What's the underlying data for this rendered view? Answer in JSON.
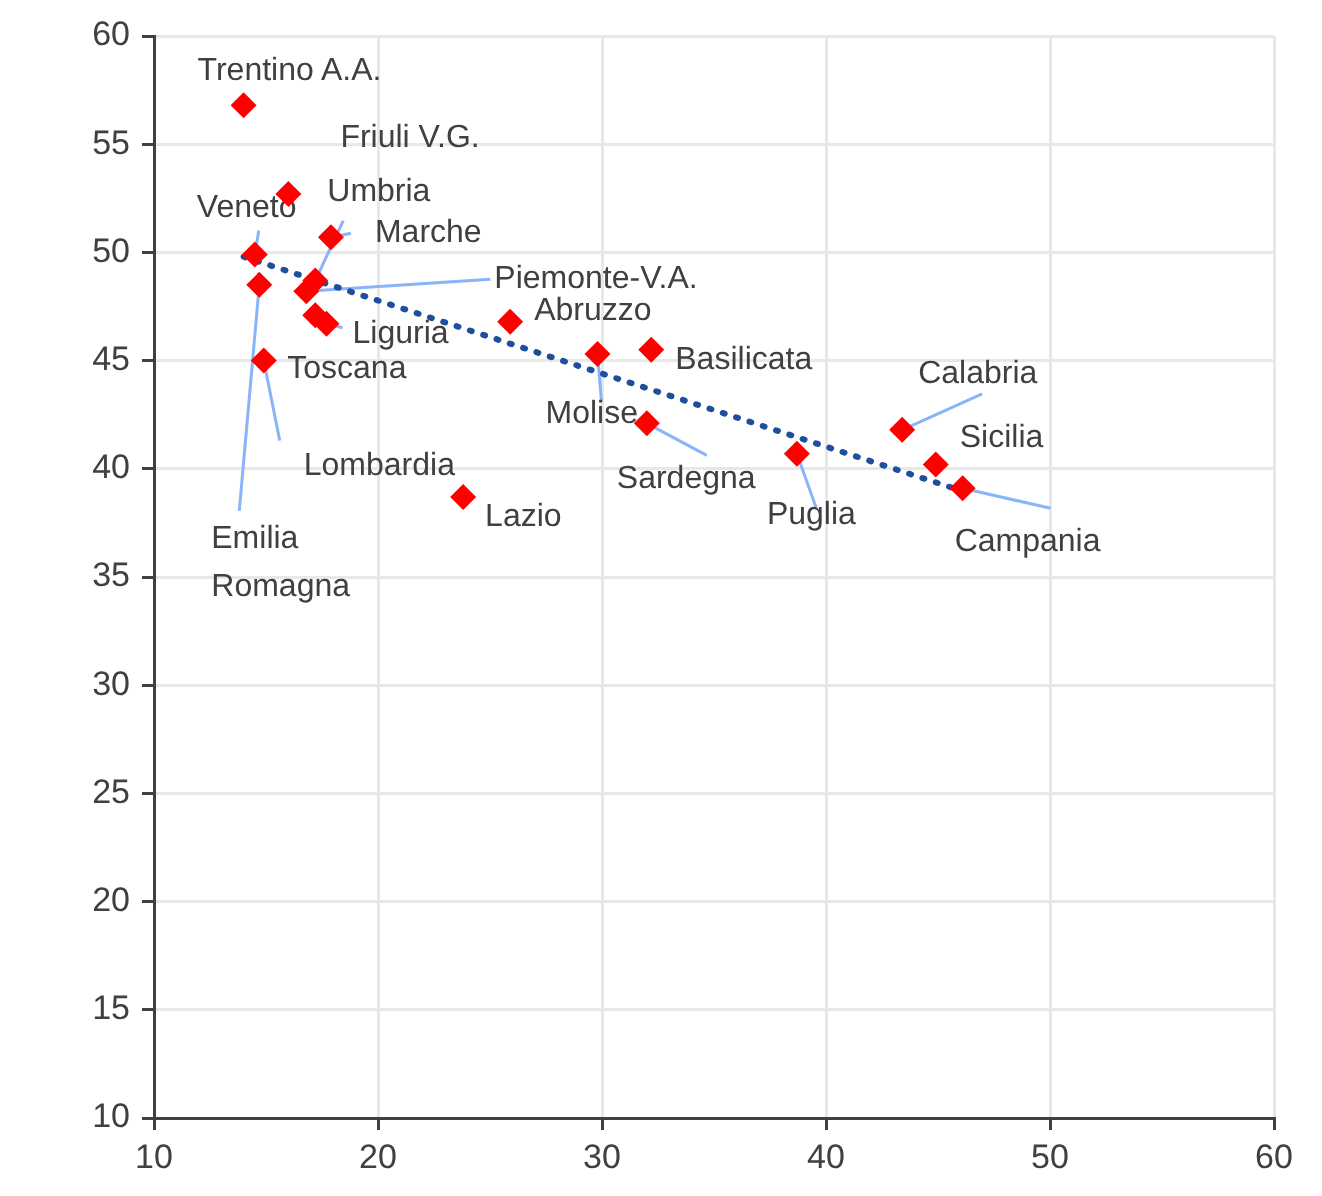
{
  "chart_data": {
    "type": "scatter",
    "xlim": [
      10,
      60
    ],
    "xticks": [
      10,
      20,
      30,
      40,
      50,
      60
    ],
    "ylim": [
      10,
      60
    ],
    "yticks": [
      10,
      15,
      20,
      25,
      30,
      35,
      40,
      45,
      50,
      55,
      60
    ],
    "grid": true,
    "legend": false,
    "marker": "diamond",
    "series": [
      {
        "color": "#ff0000",
        "x": [
          14.0,
          16.0,
          14.5,
          17.2,
          17.9,
          16.8,
          17.7,
          17.2,
          14.9,
          14.7,
          23.8,
          25.9,
          29.8,
          32.2,
          32.0,
          38.7,
          43.4,
          44.9,
          46.1
        ],
        "values": [
          56.8,
          52.7,
          49.9,
          48.7,
          50.7,
          48.2,
          46.7,
          47.1,
          45.0,
          48.5,
          38.7,
          46.8,
          45.3,
          45.5,
          42.1,
          40.7,
          41.8,
          40.2,
          39.1
        ]
      },
      {
        "type": "line",
        "color": "#1f4e9c",
        "line_style": "dotted",
        "marker": "none",
        "x": [
          14,
          46
        ],
        "values": [
          49.8,
          39.0
        ]
      }
    ],
    "annotations": [
      {
        "text": "Trentino A.A.",
        "x": 14.0,
        "y": 56.8
      },
      {
        "text": "Friuli V.G.",
        "x": 16.0,
        "y": 52.7
      },
      {
        "text": "Veneto",
        "x": 14.5,
        "y": 49.9
      },
      {
        "text": "Umbria",
        "x": 17.2,
        "y": 48.7
      },
      {
        "text": "Marche",
        "x": 17.9,
        "y": 50.7
      },
      {
        "text": "Piemonte-V.A.",
        "x": 16.8,
        "y": 48.2
      },
      {
        "text": "Liguria",
        "x": 17.7,
        "y": 46.7
      },
      {
        "text": "Toscana",
        "x": 17.2,
        "y": 47.1
      },
      {
        "text": "Lombardia",
        "x": 14.9,
        "y": 45.0
      },
      {
        "text": "Emilia Romagna",
        "x": 14.7,
        "y": 48.5
      },
      {
        "text": "Lazio",
        "x": 23.8,
        "y": 38.7
      },
      {
        "text": "Abruzzo",
        "x": 25.9,
        "y": 46.8
      },
      {
        "text": "Molise",
        "x": 29.8,
        "y": 45.3
      },
      {
        "text": "Basilicata",
        "x": 32.2,
        "y": 45.5
      },
      {
        "text": "Sardegna",
        "x": 32.0,
        "y": 42.1
      },
      {
        "text": "Puglia",
        "x": 38.7,
        "y": 40.7
      },
      {
        "text": "Calabria",
        "x": 43.4,
        "y": 41.8
      },
      {
        "text": "Sicilia",
        "x": 44.9,
        "y": 40.2
      },
      {
        "text": "Campania",
        "x": 46.1,
        "y": 39.1
      }
    ]
  }
}
